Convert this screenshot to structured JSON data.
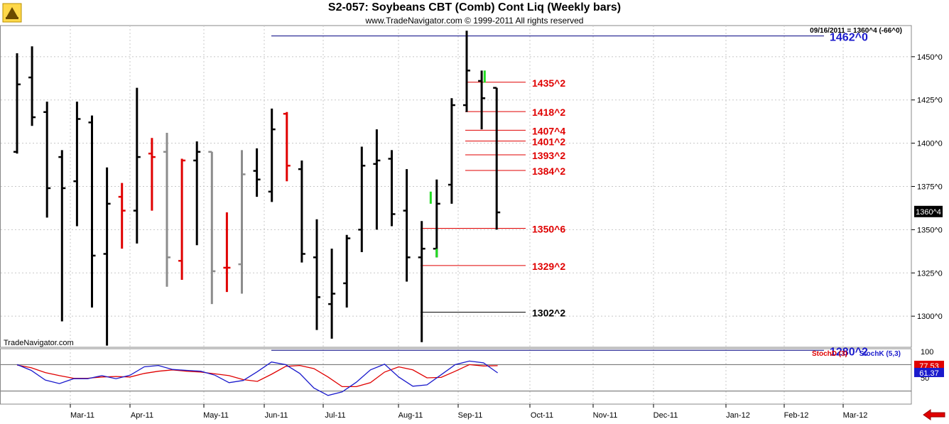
{
  "header": {
    "title": "S2-057:  Soybeans CBT (Comb) Cont Liq  (Weekly bars)",
    "subtitle": "www.TradeNavigator.com © 1999-2011 All rights reserved",
    "quote": "09/16/2011 = 1360^4 (-66^0)",
    "watermark": "TradeNavigator.com"
  },
  "colors": {
    "up": "#000000",
    "red": "#e00000",
    "gray": "#8c8c8c",
    "green": "#22dd22",
    "navy": "#000080",
    "level_red": "#e00000",
    "level_blue": "#1a1acc",
    "stochD": "#e00000",
    "stochK": "#1a1acc"
  },
  "chart_data": [
    {
      "type": "ohlc",
      "title": "S2-057:  Soybeans CBT (Comb) Cont Liq  (Weekly bars)",
      "ylim": [
        1282,
        1468
      ],
      "yticks": [
        1300,
        1325,
        1350,
        1375,
        1400,
        1425,
        1450
      ],
      "ytick_labels": [
        "1300^0",
        "1325^0",
        "1350^0",
        "1375^0",
        "1400^0",
        "1425^0",
        "1450^0"
      ],
      "xticks": [
        "Mar-11",
        "Apr-11",
        "May-11",
        "Jun-11",
        "Jul-11",
        "Aug-11",
        "Sep-11",
        "Oct-11",
        "Nov-11",
        "Dec-11",
        "Jan-12",
        "Feb-12",
        "Mar-12"
      ],
      "last_price_label": "1360^4",
      "bars": [
        {
          "i": 0,
          "o": 1395,
          "h": 1452,
          "l": 1394,
          "c": 1434,
          "color": "black"
        },
        {
          "i": 1,
          "o": 1438,
          "h": 1456,
          "l": 1410,
          "c": 1415,
          "color": "black"
        },
        {
          "i": 2,
          "o": 1418,
          "h": 1424,
          "l": 1357,
          "c": 1374,
          "color": "black"
        },
        {
          "i": 3,
          "o": 1392,
          "h": 1396,
          "l": 1297,
          "c": 1374,
          "color": "black"
        },
        {
          "i": 4,
          "o": 1378,
          "h": 1424,
          "l": 1352,
          "c": 1414,
          "color": "black"
        },
        {
          "i": 5,
          "o": 1412,
          "h": 1416,
          "l": 1305,
          "c": 1335,
          "color": "black"
        },
        {
          "i": 6,
          "o": 1336,
          "h": 1386,
          "l": 1283,
          "c": 1365,
          "color": "black"
        },
        {
          "i": 7,
          "o": 1369,
          "h": 1377,
          "l": 1339,
          "c": 1361,
          "color": "red"
        },
        {
          "i": 8,
          "o": 1361,
          "h": 1432,
          "l": 1342,
          "c": 1392,
          "color": "black"
        },
        {
          "i": 9,
          "o": 1394,
          "h": 1403,
          "l": 1361,
          "c": 1392,
          "color": "red"
        },
        {
          "i": 10,
          "o": 1395,
          "h": 1406,
          "l": 1317,
          "c": 1334,
          "color": "gray"
        },
        {
          "i": 11,
          "o": 1332,
          "h": 1391,
          "l": 1321,
          "c": 1390,
          "color": "red"
        },
        {
          "i": 12,
          "o": 1390,
          "h": 1401,
          "l": 1341,
          "c": 1395,
          "color": "black"
        },
        {
          "i": 13,
          "o": 1395,
          "h": 1395,
          "l": 1307,
          "c": 1326,
          "color": "gray"
        },
        {
          "i": 14,
          "o": 1328,
          "h": 1360,
          "l": 1314,
          "c": 1328,
          "color": "red"
        },
        {
          "i": 15,
          "o": 1330,
          "h": 1396,
          "l": 1313,
          "c": 1382,
          "color": "gray"
        },
        {
          "i": 16,
          "o": 1384,
          "h": 1397,
          "l": 1369,
          "c": 1379,
          "color": "black"
        },
        {
          "i": 17,
          "o": 1372,
          "h": 1420,
          "l": 1366,
          "c": 1408,
          "color": "black"
        },
        {
          "i": 18,
          "o": 1417,
          "h": 1418,
          "l": 1378,
          "c": 1387,
          "color": "red"
        },
        {
          "i": 19,
          "o": 1385,
          "h": 1390,
          "l": 1331,
          "c": 1336,
          "color": "black"
        },
        {
          "i": 20,
          "o": 1334,
          "h": 1356,
          "l": 1292,
          "c": 1311,
          "color": "black"
        },
        {
          "i": 21,
          "o": 1307,
          "h": 1339,
          "l": 1287,
          "c": 1313,
          "color": "black"
        },
        {
          "i": 22,
          "o": 1319,
          "h": 1347,
          "l": 1305,
          "c": 1345,
          "color": "black"
        },
        {
          "i": 23,
          "o": 1350,
          "h": 1398,
          "l": 1337,
          "c": 1387,
          "color": "black"
        },
        {
          "i": 24,
          "o": 1388,
          "h": 1408,
          "l": 1350,
          "c": 1390,
          "color": "black"
        },
        {
          "i": 25,
          "o": 1391,
          "h": 1396,
          "l": 1352,
          "c": 1359,
          "color": "black"
        },
        {
          "i": 26,
          "o": 1361,
          "h": 1385,
          "l": 1320,
          "c": 1334,
          "color": "black"
        },
        {
          "i": 27,
          "o": 1334,
          "h": 1355,
          "l": 1285,
          "c": 1339,
          "color": "black"
        },
        {
          "i": 28,
          "o": 1339,
          "h": 1379,
          "l": 1334,
          "c": 1365,
          "color": "black"
        },
        {
          "i": 29,
          "o": 1376,
          "h": 1426,
          "l": 1365,
          "c": 1422,
          "color": "black"
        },
        {
          "i": 30,
          "o": 1422,
          "h": 1465,
          "l": 1418,
          "c": 1442,
          "color": "black"
        },
        {
          "i": 31,
          "o": 1436,
          "h": 1442,
          "l": 1408,
          "c": 1426,
          "color": "black"
        },
        {
          "i": 32,
          "o": 1432,
          "h": 1432,
          "l": 1350,
          "c": 1360,
          "color": "black"
        }
      ],
      "levels": [
        {
          "label": "1462^0",
          "value": 1462,
          "color": "blue",
          "kind": "long"
        },
        {
          "label": "1435^2",
          "value": 1435.25,
          "color": "red",
          "kind": "short"
        },
        {
          "label": "1418^2",
          "value": 1418.25,
          "color": "red",
          "kind": "short"
        },
        {
          "label": "1407^4",
          "value": 1407.5,
          "color": "red",
          "kind": "short"
        },
        {
          "label": "1401^2",
          "value": 1401.25,
          "color": "red",
          "kind": "short"
        },
        {
          "label": "1393^2",
          "value": 1393.25,
          "color": "red",
          "kind": "short"
        },
        {
          "label": "1384^2",
          "value": 1384.25,
          "color": "red",
          "kind": "short"
        },
        {
          "label": "1350^6",
          "value": 1350.75,
          "color": "red",
          "kind": "short"
        },
        {
          "label": "1329^2",
          "value": 1329.25,
          "color": "red",
          "kind": "short"
        },
        {
          "label": "1302^2",
          "value": 1302.25,
          "color": "black",
          "kind": "short"
        },
        {
          "label": "1280^2",
          "value": 1280.25,
          "color": "blue",
          "kind": "long"
        }
      ]
    },
    {
      "type": "line",
      "ylim": [
        0,
        100
      ],
      "ytick_labels": [
        "100",
        "50"
      ],
      "legend": [
        "StochD (3)",
        "StochK (5,3)"
      ],
      "series": [
        {
          "name": "StochD (3)",
          "values": [
            79,
            73,
            62,
            55,
            49,
            49,
            52,
            53,
            52,
            60,
            65,
            68,
            65,
            63,
            59,
            55,
            46,
            42,
            58,
            76,
            78,
            71,
            52,
            30,
            30,
            39,
            63,
            75,
            68,
            50,
            51,
            65,
            80,
            77,
            77.53
          ]
        },
        {
          "name": "StochK (5,3)",
          "values": [
            80,
            67,
            45,
            37,
            48,
            48,
            55,
            48,
            56,
            75,
            78,
            69,
            67,
            65,
            56,
            39,
            44,
            64,
            86,
            80,
            60,
            27,
            10,
            18,
            40,
            68,
            81,
            52,
            31,
            34,
            57,
            80,
            88,
            84,
            61.37
          ]
        }
      ],
      "value_labels": [
        "77.53",
        "61.37"
      ]
    }
  ]
}
